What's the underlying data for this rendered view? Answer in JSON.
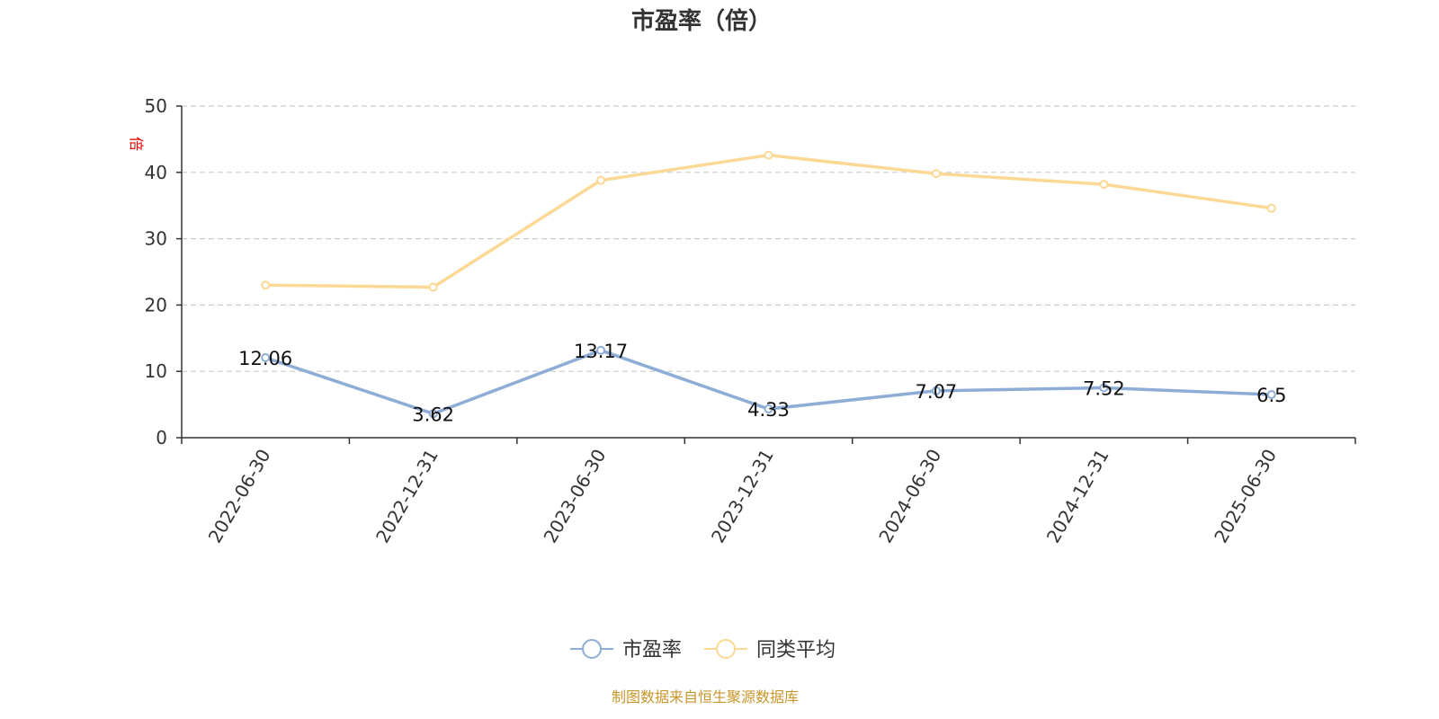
{
  "chart_data": {
    "type": "line",
    "title": "市盈率（倍）",
    "ylabel": "倍",
    "xlabel": "",
    "categories": [
      "2022-06-30",
      "2022-12-31",
      "2023-06-30",
      "2023-12-31",
      "2024-06-30",
      "2024-12-31",
      "2025-06-30"
    ],
    "ylim": [
      0,
      50
    ],
    "yticks": [
      0,
      10,
      20,
      30,
      40,
      50
    ],
    "grid": true,
    "legend_position": "bottom",
    "series": [
      {
        "name": "市盈率",
        "color": "#8eadd6",
        "values": [
          12.06,
          3.62,
          13.17,
          4.33,
          7.07,
          7.52,
          6.5
        ],
        "labels": [
          "12.06",
          "3.62",
          "13.17",
          "4.33",
          "7.07",
          "7.52",
          "6.5"
        ]
      },
      {
        "name": "同类平均",
        "color": "#fbd995",
        "values": [
          23.0,
          22.7,
          38.8,
          42.6,
          39.8,
          38.2,
          34.6
        ],
        "labels": []
      }
    ]
  },
  "source": "制图数据来自恒生聚源数据库"
}
